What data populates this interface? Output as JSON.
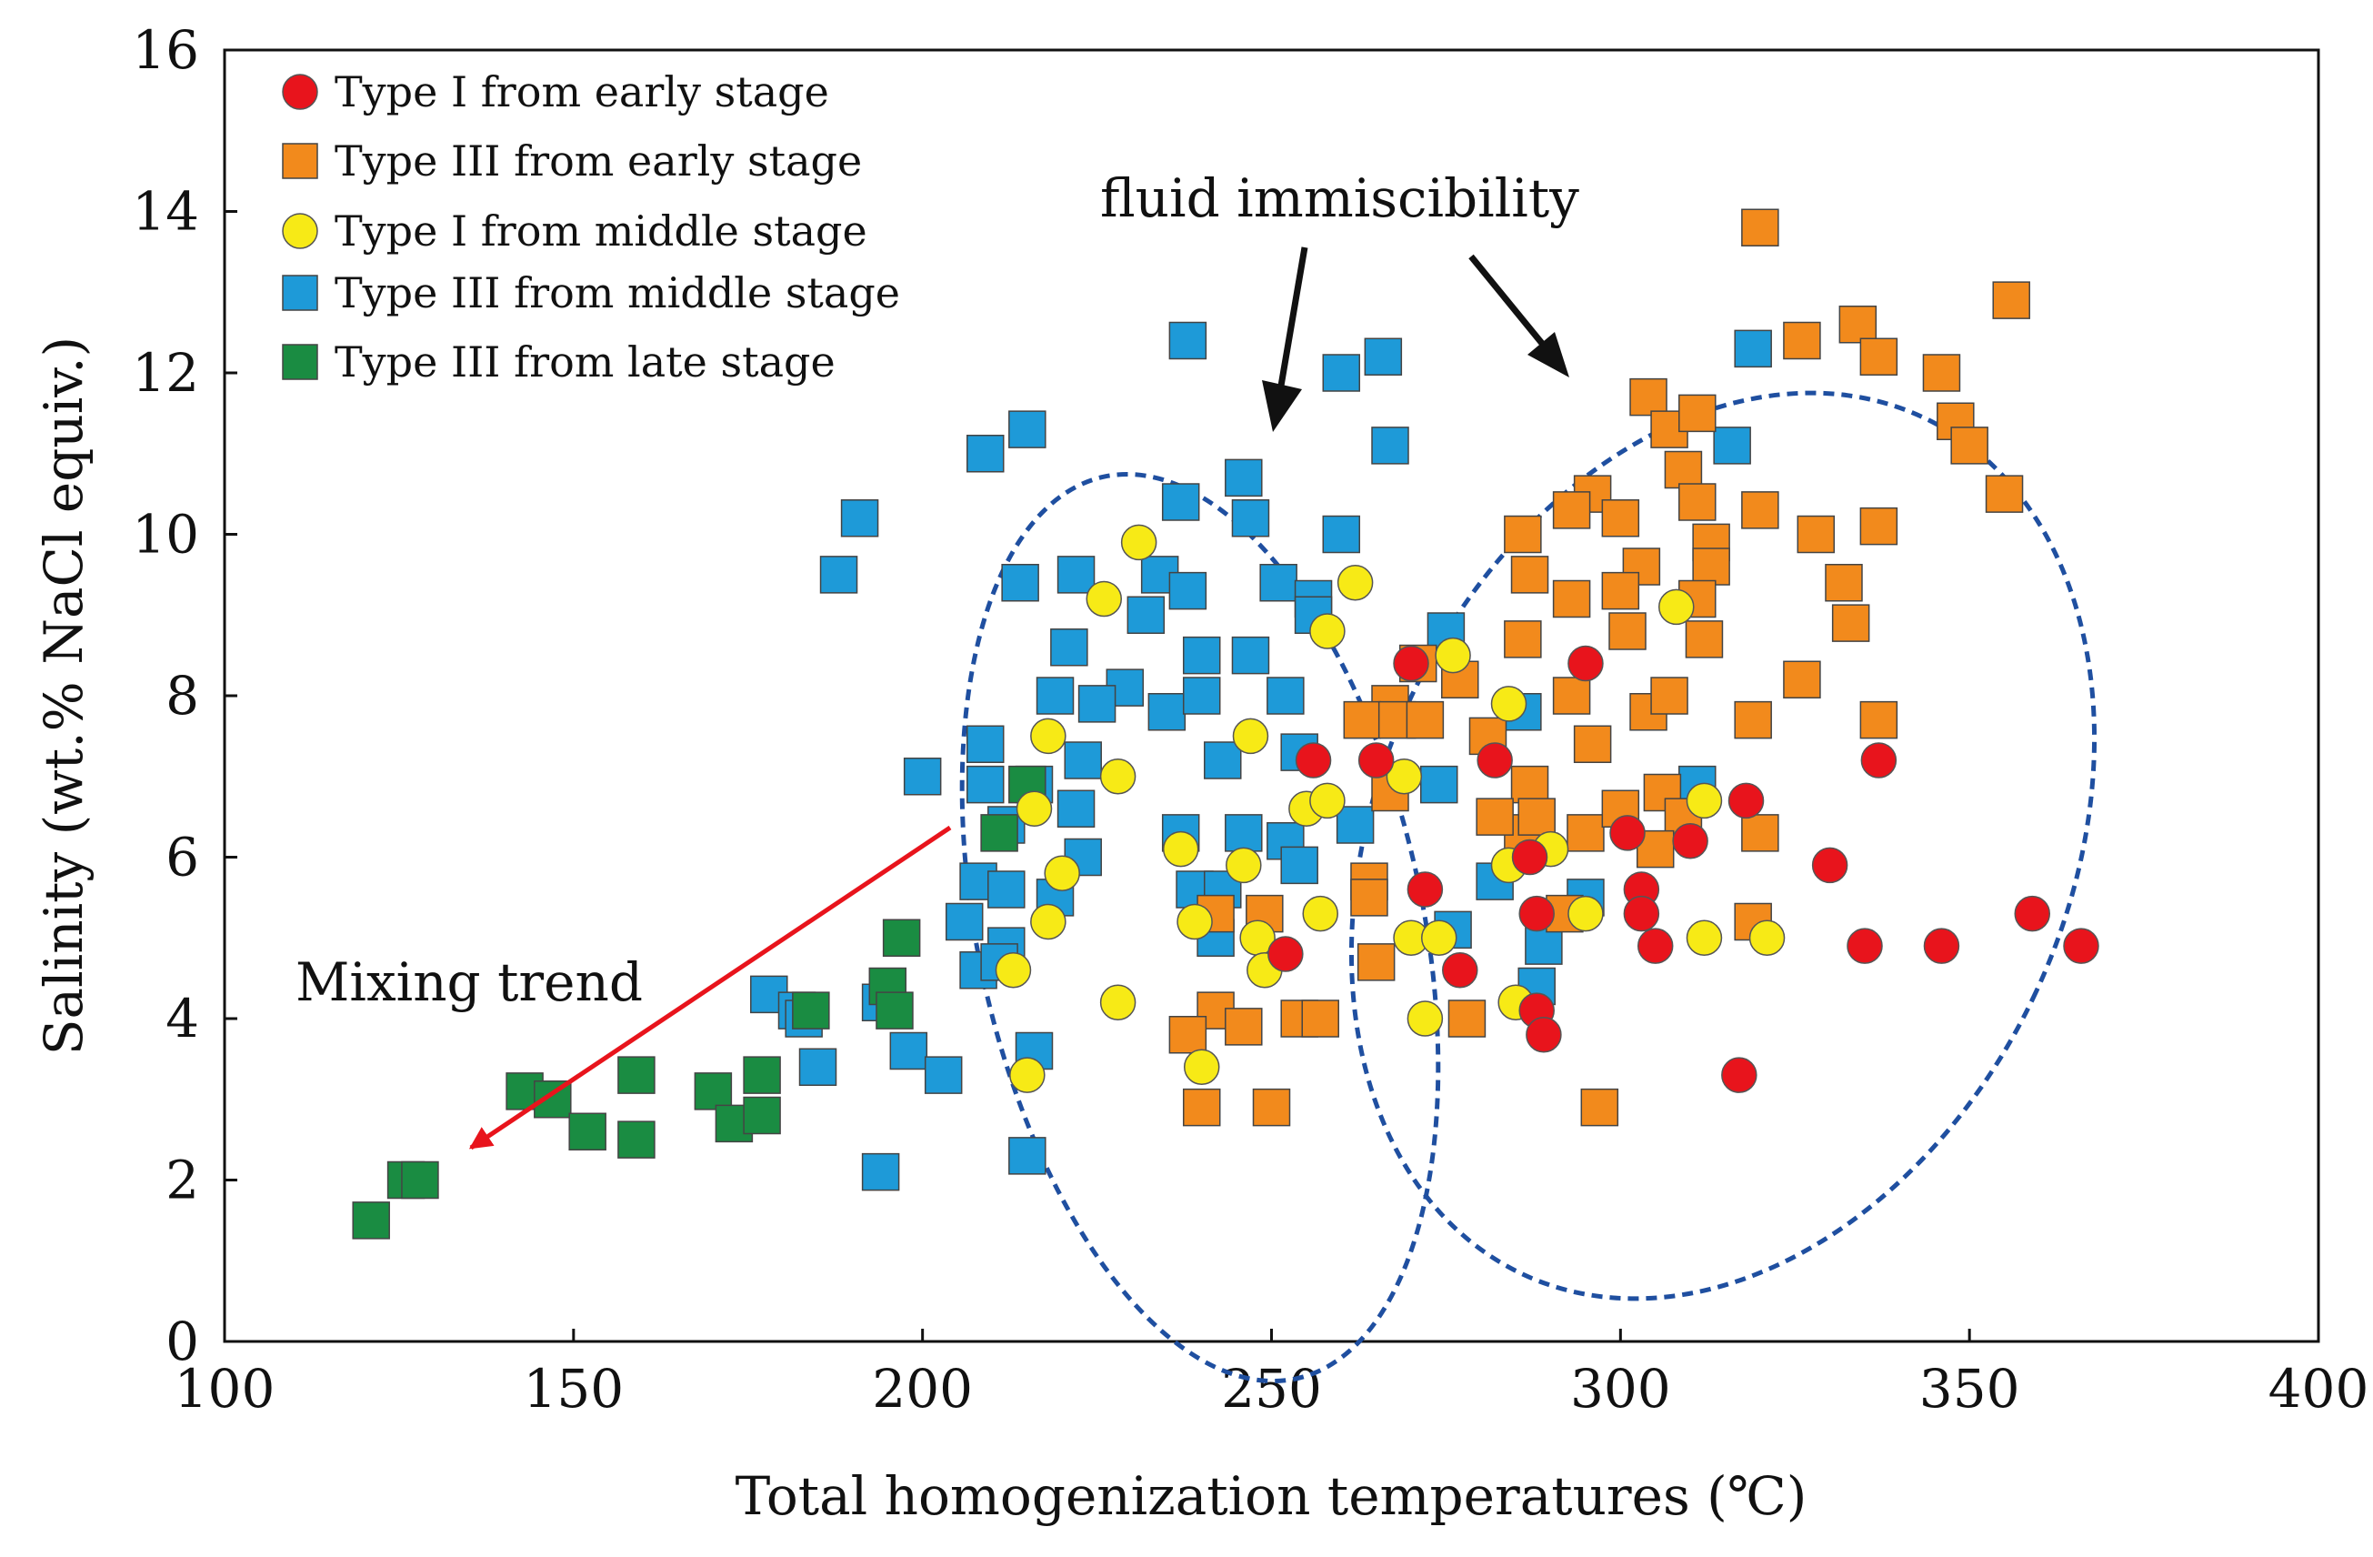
{
  "chart_data": {
    "type": "scatter",
    "title": "",
    "xlabel": "Total homogenization temperatures (℃)",
    "ylabel": "Salinity (wt.% NaCl equiv.)",
    "xlim": [
      100,
      400
    ],
    "ylim": [
      0,
      16
    ],
    "xticks": [
      100,
      150,
      200,
      250,
      300,
      350,
      400
    ],
    "yticks": [
      0,
      2,
      4,
      6,
      8,
      10,
      12,
      14,
      16
    ],
    "grid": false,
    "legend_position": "top-left",
    "series": [
      {
        "name": "Type I from early stage",
        "marker": "circle",
        "color": "#e8141c",
        "points": [
          [
            270,
            8.4
          ],
          [
            295,
            8.4
          ],
          [
            256,
            7.2
          ],
          [
            265,
            7.2
          ],
          [
            282,
            7.2
          ],
          [
            337,
            7.2
          ],
          [
            318,
            6.7
          ],
          [
            301,
            6.3
          ],
          [
            310,
            6.2
          ],
          [
            287,
            6.0
          ],
          [
            330,
            5.9
          ],
          [
            272,
            5.6
          ],
          [
            303,
            5.6
          ],
          [
            303,
            5.3
          ],
          [
            288,
            5.3
          ],
          [
            359,
            5.3
          ],
          [
            305,
            4.9
          ],
          [
            335,
            4.9
          ],
          [
            346,
            4.9
          ],
          [
            366,
            4.9
          ],
          [
            252,
            4.8
          ],
          [
            277,
            4.6
          ],
          [
            288,
            4.1
          ],
          [
            289,
            3.8
          ],
          [
            317,
            3.3
          ]
        ]
      },
      {
        "name": "Type III from early stage",
        "marker": "square",
        "color": "#f28a1c",
        "points": [
          [
            320,
            13.8
          ],
          [
            326,
            12.4
          ],
          [
            334,
            12.6
          ],
          [
            356,
            12.9
          ],
          [
            337,
            12.2
          ],
          [
            346,
            12.0
          ],
          [
            304,
            11.7
          ],
          [
            307,
            11.3
          ],
          [
            311,
            11.5
          ],
          [
            348,
            11.4
          ],
          [
            350,
            11.1
          ],
          [
            309,
            10.8
          ],
          [
            311,
            10.4
          ],
          [
            355,
            10.5
          ],
          [
            296,
            10.5
          ],
          [
            293,
            10.3
          ],
          [
            300,
            10.2
          ],
          [
            320,
            10.3
          ],
          [
            313,
            9.9
          ],
          [
            286,
            10.0
          ],
          [
            328,
            10.0
          ],
          [
            337,
            10.1
          ],
          [
            287,
            9.5
          ],
          [
            303,
            9.6
          ],
          [
            313,
            9.6
          ],
          [
            300,
            9.3
          ],
          [
            293,
            9.2
          ],
          [
            311,
            9.2
          ],
          [
            332,
            9.4
          ],
          [
            271,
            8.4
          ],
          [
            277,
            8.2
          ],
          [
            301,
            8.8
          ],
          [
            286,
            8.7
          ],
          [
            312,
            8.7
          ],
          [
            333,
            8.9
          ],
          [
            267,
            7.9
          ],
          [
            263,
            7.7
          ],
          [
            268,
            7.7
          ],
          [
            272,
            7.7
          ],
          [
            281,
            7.5
          ],
          [
            293,
            8.0
          ],
          [
            304,
            7.8
          ],
          [
            307,
            8.0
          ],
          [
            326,
            8.2
          ],
          [
            319,
            7.7
          ],
          [
            337,
            7.7
          ],
          [
            296,
            7.4
          ],
          [
            287,
            6.9
          ],
          [
            267,
            6.8
          ],
          [
            286,
            6.3
          ],
          [
            295,
            6.3
          ],
          [
            300,
            6.6
          ],
          [
            306,
            6.8
          ],
          [
            309,
            6.5
          ],
          [
            320,
            6.3
          ],
          [
            282,
            6.5
          ],
          [
            288,
            6.5
          ],
          [
            305,
            6.1
          ],
          [
            264,
            5.7
          ],
          [
            264,
            5.5
          ],
          [
            242,
            5.3
          ],
          [
            249,
            5.3
          ],
          [
            319,
            5.2
          ],
          [
            292,
            5.3
          ],
          [
            265,
            4.7
          ],
          [
            242,
            4.1
          ],
          [
            246,
            3.9
          ],
          [
            238,
            3.8
          ],
          [
            254,
            4.0
          ],
          [
            257,
            4.0
          ],
          [
            278,
            4.0
          ],
          [
            240,
            2.9
          ],
          [
            250,
            2.9
          ],
          [
            297,
            2.9
          ]
        ]
      },
      {
        "name": "Type I from middle stage",
        "marker": "circle",
        "color": "#f7ea16",
        "points": [
          [
            231,
            9.9
          ],
          [
            226,
            9.2
          ],
          [
            262,
            9.4
          ],
          [
            258,
            8.8
          ],
          [
            308,
            9.1
          ],
          [
            276,
            8.5
          ],
          [
            284,
            7.9
          ],
          [
            218,
            7.5
          ],
          [
            247,
            7.5
          ],
          [
            228,
            7.0
          ],
          [
            269,
            7.0
          ],
          [
            216,
            6.6
          ],
          [
            255,
            6.6
          ],
          [
            258,
            6.7
          ],
          [
            312,
            6.7
          ],
          [
            237,
            6.1
          ],
          [
            290,
            6.1
          ],
          [
            220,
            5.8
          ],
          [
            246,
            5.9
          ],
          [
            284,
            5.9
          ],
          [
            218,
            5.2
          ],
          [
            239,
            5.2
          ],
          [
            257,
            5.3
          ],
          [
            295,
            5.3
          ],
          [
            270,
            5.0
          ],
          [
            274,
            5.0
          ],
          [
            312,
            5.0
          ],
          [
            321,
            5.0
          ],
          [
            248,
            5.0
          ],
          [
            249,
            4.6
          ],
          [
            213,
            4.6
          ],
          [
            228,
            4.2
          ],
          [
            272,
            4.0
          ],
          [
            285,
            4.2
          ],
          [
            215,
            3.3
          ],
          [
            240,
            3.4
          ]
        ]
      },
      {
        "name": "Type III from middle stage",
        "marker": "square",
        "color": "#1e9ad8",
        "points": [
          [
            238,
            12.4
          ],
          [
            260,
            12.0
          ],
          [
            266,
            12.2
          ],
          [
            267,
            11.1
          ],
          [
            209,
            11.0
          ],
          [
            215,
            11.3
          ],
          [
            319,
            12.3
          ],
          [
            316,
            11.1
          ],
          [
            191,
            10.2
          ],
          [
            188,
            9.5
          ],
          [
            237,
            10.4
          ],
          [
            246,
            10.7
          ],
          [
            247,
            10.2
          ],
          [
            260,
            10.0
          ],
          [
            214,
            9.4
          ],
          [
            222,
            9.5
          ],
          [
            234,
            9.5
          ],
          [
            238,
            9.3
          ],
          [
            251,
            9.4
          ],
          [
            256,
            9.2
          ],
          [
            232,
            9.0
          ],
          [
            256,
            9.0
          ],
          [
            275,
            8.8
          ],
          [
            221,
            8.6
          ],
          [
            229,
            8.1
          ],
          [
            240,
            8.5
          ],
          [
            247,
            8.5
          ],
          [
            219,
            8.0
          ],
          [
            225,
            7.9
          ],
          [
            235,
            7.8
          ],
          [
            240,
            8.0
          ],
          [
            252,
            8.0
          ],
          [
            286,
            7.8
          ],
          [
            209,
            7.4
          ],
          [
            223,
            7.2
          ],
          [
            243,
            7.2
          ],
          [
            254,
            7.3
          ],
          [
            200,
            7.0
          ],
          [
            209,
            6.9
          ],
          [
            216,
            6.9
          ],
          [
            222,
            6.6
          ],
          [
            274,
            6.9
          ],
          [
            311,
            6.9
          ],
          [
            212,
            6.4
          ],
          [
            223,
            6.0
          ],
          [
            237,
            6.3
          ],
          [
            246,
            6.3
          ],
          [
            252,
            6.2
          ],
          [
            254,
            5.9
          ],
          [
            262,
            6.4
          ],
          [
            239,
            5.6
          ],
          [
            208,
            5.7
          ],
          [
            212,
            5.6
          ],
          [
            219,
            5.5
          ],
          [
            243,
            5.6
          ],
          [
            282,
            5.7
          ],
          [
            206,
            5.2
          ],
          [
            212,
            4.9
          ],
          [
            242,
            5.0
          ],
          [
            276,
            5.1
          ],
          [
            289,
            4.9
          ],
          [
            208,
            4.6
          ],
          [
            211,
            4.7
          ],
          [
            295,
            5.5
          ],
          [
            194,
            4.2
          ],
          [
            178,
            4.3
          ],
          [
            182,
            4.1
          ],
          [
            185,
            3.4
          ],
          [
            198,
            3.6
          ],
          [
            203,
            3.3
          ],
          [
            216,
            3.6
          ],
          [
            183,
            4.0
          ],
          [
            194,
            2.1
          ],
          [
            215,
            2.3
          ],
          [
            288,
            4.4
          ]
        ]
      },
      {
        "name": "Type III from late stage",
        "marker": "square",
        "color": "#1a8c42",
        "points": [
          [
            215,
            6.9
          ],
          [
            211,
            6.3
          ],
          [
            197,
            5.0
          ],
          [
            195,
            4.4
          ],
          [
            196,
            4.1
          ],
          [
            184,
            4.1
          ],
          [
            177,
            3.3
          ],
          [
            170,
            3.1
          ],
          [
            173,
            2.7
          ],
          [
            177,
            2.8
          ],
          [
            159,
            3.3
          ],
          [
            143,
            3.1
          ],
          [
            147,
            3.0
          ],
          [
            152,
            2.6
          ],
          [
            159,
            2.5
          ],
          [
            126,
            2.0
          ],
          [
            128,
            2.0
          ],
          [
            121,
            1.5
          ]
        ]
      }
    ],
    "annotations": {
      "fluid_immiscibility": "fluid immiscibility",
      "mixing_trend": "Mixing trend"
    }
  }
}
